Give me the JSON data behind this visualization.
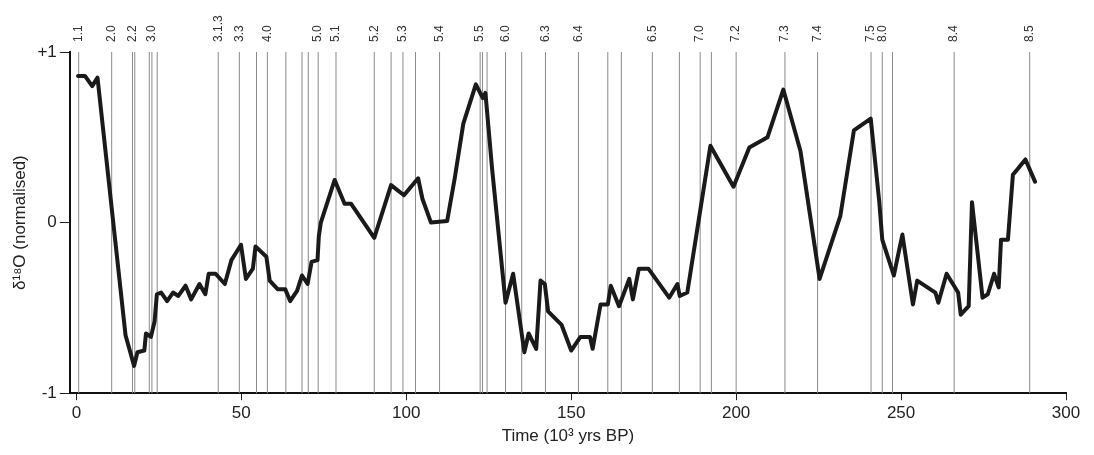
{
  "chart_data": {
    "type": "line",
    "xlabel": "Time (10³ yrs BP)",
    "ylabel": "δ¹⁸O (normalised)",
    "xlim": [
      -2,
      300
    ],
    "xticks": [
      0,
      50,
      100,
      150,
      200,
      250,
      300
    ],
    "ylim": [
      -1,
      1
    ],
    "yticks": [
      {
        "value": -1,
        "label": "-1"
      },
      0,
      {
        "value": 1,
        "label": "+1"
      }
    ],
    "grid": false,
    "legend": false,
    "marker": "none",
    "line_style": "solid",
    "series": [
      {
        "color": "#1a1a1a",
        "x": [
          0.5,
          2.6,
          4.8,
          6.4,
          14.9,
          17.5,
          18.5,
          20.6,
          21.1,
          22.6,
          23.7,
          24.4,
          25.7,
          27.5,
          29.3,
          30.9,
          33.1,
          34.8,
          37.3,
          39.1,
          40.1,
          42.2,
          45.0,
          47.0,
          49.9,
          51.4,
          53.5,
          54.3,
          57.6,
          58.6,
          61.0,
          63.3,
          64.8,
          66.9,
          68.4,
          70.1,
          71.3,
          73.1,
          73.5,
          74.1,
          78.3,
          81.3,
          83.3,
          90.3,
          95.4,
          99.3,
          103.6,
          104.9,
          107.5,
          112.4,
          114.7,
          117.3,
          121.1,
          123.2,
          124.0,
          126.0,
          130.1,
          132.4,
          135.8,
          137.1,
          139.4,
          140.7,
          142.0,
          143.0,
          147.1,
          150.0,
          152.8,
          155.7,
          156.5,
          158.9,
          161.1,
          162.0,
          164.5,
          167.6,
          168.7,
          170.5,
          173.4,
          179.7,
          182.2,
          182.9,
          185.2,
          192.2,
          199.2,
          204.0,
          209.5,
          214.3,
          219.5,
          225.3,
          231.6,
          235.7,
          240.8,
          243.4,
          244.3,
          247.8,
          250.4,
          253.6,
          254.9,
          260.4,
          261.3,
          263.8,
          267.3,
          268.1,
          270.5,
          271.5,
          274.7,
          276.3,
          278.2,
          279.6,
          280.3,
          282.4,
          283.9,
          287.7,
          290.6
        ],
        "values": [
          0.86,
          0.86,
          0.8,
          0.85,
          -0.66,
          -0.84,
          -0.76,
          -0.75,
          -0.65,
          -0.67,
          -0.58,
          -0.42,
          -0.41,
          -0.46,
          -0.41,
          -0.43,
          -0.37,
          -0.45,
          -0.36,
          -0.42,
          -0.3,
          -0.3,
          -0.36,
          -0.22,
          -0.13,
          -0.33,
          -0.27,
          -0.14,
          -0.2,
          -0.34,
          -0.39,
          -0.39,
          -0.46,
          -0.4,
          -0.31,
          -0.36,
          -0.23,
          -0.22,
          -0.08,
          0.0,
          0.25,
          0.11,
          0.11,
          -0.09,
          0.22,
          0.16,
          0.26,
          0.14,
          0.0,
          0.01,
          0.26,
          0.58,
          0.81,
          0.73,
          0.76,
          0.32,
          -0.47,
          -0.3,
          -0.76,
          -0.65,
          -0.74,
          -0.34,
          -0.36,
          -0.52,
          -0.6,
          -0.75,
          -0.67,
          -0.67,
          -0.74,
          -0.48,
          -0.48,
          -0.37,
          -0.49,
          -0.33,
          -0.45,
          -0.27,
          -0.27,
          -0.44,
          -0.36,
          -0.43,
          -0.41,
          0.45,
          0.21,
          0.44,
          0.5,
          0.78,
          0.42,
          -0.33,
          0.04,
          0.54,
          0.61,
          0.12,
          -0.1,
          -0.31,
          -0.07,
          -0.48,
          -0.34,
          -0.41,
          -0.47,
          -0.3,
          -0.41,
          -0.54,
          -0.49,
          0.12,
          -0.44,
          -0.42,
          -0.3,
          -0.38,
          -0.1,
          -0.1,
          0.28,
          0.37,
          0.24
        ]
      }
    ],
    "ref_lines": [
      {
        "axis": "x",
        "value": 0.7
      },
      {
        "axis": "x",
        "value": 10.7
      },
      {
        "axis": "x",
        "value": 17.0
      },
      {
        "axis": "x",
        "value": 17.7
      },
      {
        "axis": "x",
        "value": 22.1
      },
      {
        "axis": "x",
        "value": 22.9
      },
      {
        "axis": "x",
        "value": 24.5
      },
      {
        "axis": "x",
        "value": 43.0
      },
      {
        "axis": "x",
        "value": 49.4
      },
      {
        "axis": "x",
        "value": 54.6
      },
      {
        "axis": "x",
        "value": 57.9
      },
      {
        "axis": "x",
        "value": 63.5
      },
      {
        "axis": "x",
        "value": 68.4
      },
      {
        "axis": "x",
        "value": 70.3
      },
      {
        "axis": "x",
        "value": 73.3
      },
      {
        "axis": "x",
        "value": 78.7
      },
      {
        "axis": "x",
        "value": 90.3
      },
      {
        "axis": "x",
        "value": 95.4
      },
      {
        "axis": "x",
        "value": 99.0
      },
      {
        "axis": "x",
        "value": 102.8
      },
      {
        "axis": "x",
        "value": 110.1
      },
      {
        "axis": "x",
        "value": 122.4
      },
      {
        "axis": "x",
        "value": 123.1
      },
      {
        "axis": "x",
        "value": 124.5
      },
      {
        "axis": "x",
        "value": 130.1
      },
      {
        "axis": "x",
        "value": 135.0
      },
      {
        "axis": "x",
        "value": 142.2
      },
      {
        "axis": "x",
        "value": 152.2
      },
      {
        "axis": "x",
        "value": 161.1
      },
      {
        "axis": "x",
        "value": 165.2
      },
      {
        "axis": "x",
        "value": 174.6
      },
      {
        "axis": "x",
        "value": 182.8
      },
      {
        "axis": "x",
        "value": 189.1
      },
      {
        "axis": "x",
        "value": 192.5
      },
      {
        "axis": "x",
        "value": 200.0
      },
      {
        "axis": "x",
        "value": 214.8
      },
      {
        "axis": "x",
        "value": 224.7
      },
      {
        "axis": "x",
        "value": 240.9
      },
      {
        "axis": "x",
        "value": 244.3
      },
      {
        "axis": "x",
        "value": 247.4
      },
      {
        "axis": "x",
        "value": 266.1
      },
      {
        "axis": "x",
        "value": 289.0
      }
    ],
    "annotations": [
      {
        "text": "1.1",
        "x": 0.7,
        "y": 1
      },
      {
        "text": "2.0",
        "x": 10.7,
        "y": 1
      },
      {
        "text": "2.2",
        "x": 17.0,
        "y": 1
      },
      {
        "text": "3.0",
        "x": 22.9,
        "y": 1
      },
      {
        "text": "3.1.3",
        "x": 43.0,
        "y": 1
      },
      {
        "text": "3.3",
        "x": 49.4,
        "y": 1
      },
      {
        "text": "4.0",
        "x": 57.9,
        "y": 1
      },
      {
        "text": "5.0",
        "x": 73.3,
        "y": 1
      },
      {
        "text": "5.1",
        "x": 78.7,
        "y": 1
      },
      {
        "text": "5.2",
        "x": 90.3,
        "y": 1
      },
      {
        "text": "5.3",
        "x": 99.0,
        "y": 1
      },
      {
        "text": "5.4",
        "x": 110.1,
        "y": 1
      },
      {
        "text": "5.5",
        "x": 122.4,
        "y": 1
      },
      {
        "text": "6.0",
        "x": 130.1,
        "y": 1
      },
      {
        "text": "6.3",
        "x": 142.2,
        "y": 1
      },
      {
        "text": "6.4",
        "x": 152.2,
        "y": 1
      },
      {
        "text": "6.5",
        "x": 174.6,
        "y": 1
      },
      {
        "text": "7.0",
        "x": 189.1,
        "y": 1
      },
      {
        "text": "7.2",
        "x": 200.0,
        "y": 1
      },
      {
        "text": "7.3",
        "x": 214.8,
        "y": 1
      },
      {
        "text": "7.4",
        "x": 224.7,
        "y": 1
      },
      {
        "text": "7.5",
        "x": 240.9,
        "y": 1
      },
      {
        "text": "8.0",
        "x": 244.3,
        "y": 1
      },
      {
        "text": "8.4",
        "x": 266.1,
        "y": 1
      },
      {
        "text": "8.5",
        "x": 289.0,
        "y": 1
      }
    ]
  }
}
